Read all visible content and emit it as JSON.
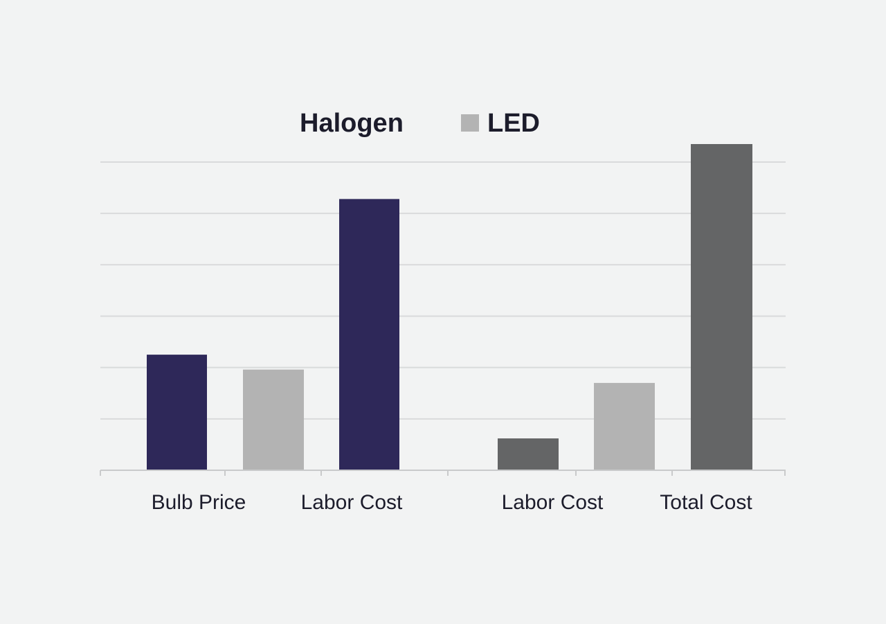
{
  "chart_data": {
    "type": "bar",
    "legend": {
      "placement": "top-center",
      "items": [
        {
          "label": "Halogen",
          "color": "#2e2859",
          "swatch": false
        },
        {
          "label": "LED",
          "color": "#b3b3b3",
          "swatch": true
        }
      ]
    },
    "categories": [
      {
        "label": "Bulb Price",
        "group": 0
      },
      {
        "label": "Labor Cost",
        "group": 0
      },
      {
        "label": "Labor Cost",
        "group": 1
      },
      {
        "label": "Total Cost",
        "group": 1
      }
    ],
    "bars": [
      {
        "value": 2.25,
        "color": "#2e2859"
      },
      {
        "value": 1.96,
        "color": "#b3b3b3"
      },
      {
        "value": 5.28,
        "color": "#2e2859"
      },
      {
        "value": 0.62,
        "color": "#646566"
      },
      {
        "value": 1.7,
        "color": "#b3b3b3"
      },
      {
        "value": 6.35,
        "color": "#646566"
      }
    ],
    "ylim": [
      0,
      6.35
    ],
    "gridlines": [
      1,
      2,
      3,
      4,
      5,
      6
    ],
    "grid": true,
    "show_y_tick_labels": false
  }
}
